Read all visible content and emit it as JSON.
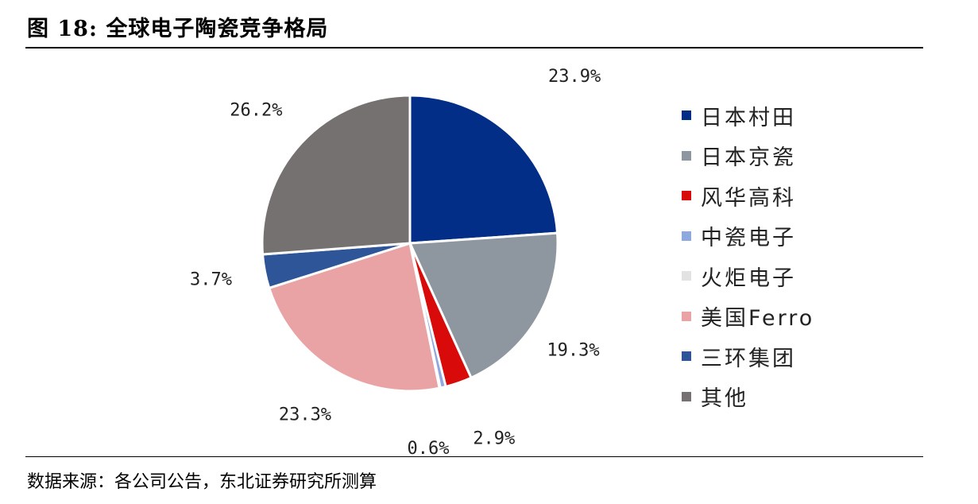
{
  "header": {
    "title": "图 18:  全球电子陶瓷竞争格局"
  },
  "footer": {
    "source": "数据来源：各公司公告，东北证券研究所测算"
  },
  "chart_data": {
    "type": "pie",
    "title": "",
    "legend_position": "right",
    "slices": [
      {
        "name": "日本村田",
        "value": 23.9,
        "label": "23.9%",
        "color": "#022E87"
      },
      {
        "name": "日本京瓷",
        "value": 19.3,
        "label": "19.3%",
        "color": "#8E979F"
      },
      {
        "name": "风华高科",
        "value": 2.9,
        "label": "2.9%",
        "color": "#D80A0A"
      },
      {
        "name": "中瓷电子",
        "value": 0.6,
        "label": "0.6%",
        "color": "#8FA8E0"
      },
      {
        "name": "火炬电子",
        "value": 0.1,
        "label": "",
        "color": "#E2E2E2"
      },
      {
        "name": "美国Ferro",
        "value": 23.3,
        "label": "23.3%",
        "color": "#EAA3A5"
      },
      {
        "name": "三环集团",
        "value": 3.7,
        "label": "3.7%",
        "color": "#2E5598"
      },
      {
        "name": "其他",
        "value": 26.2,
        "label": "26.2%",
        "color": "#767171"
      }
    ]
  }
}
